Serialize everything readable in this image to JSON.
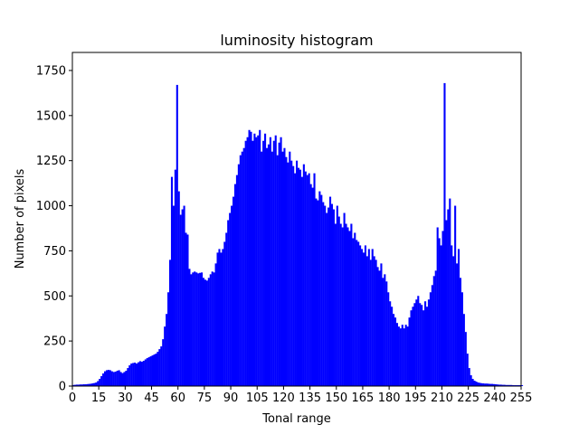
{
  "chart_data": {
    "type": "bar",
    "title": "luminosity histogram",
    "xlabel": "Tonal range",
    "ylabel": "Number of pixels",
    "xlim": [
      0,
      255
    ],
    "ylim": [
      0,
      1850
    ],
    "grid": false,
    "bar_color": "#0000ff",
    "x_ticks": [
      0,
      15,
      30,
      45,
      60,
      75,
      90,
      105,
      120,
      135,
      150,
      165,
      180,
      195,
      210,
      225,
      240,
      255
    ],
    "y_ticks": [
      0,
      250,
      500,
      750,
      1000,
      1250,
      1500,
      1750
    ],
    "series": [
      {
        "values": [
          6,
          7,
          8,
          8,
          9,
          9,
          10,
          10,
          11,
          12,
          13,
          15,
          17,
          20,
          28,
          40,
          55,
          70,
          82,
          88,
          90,
          88,
          82,
          78,
          80,
          85,
          88,
          78,
          72,
          78,
          85,
          100,
          115,
          125,
          128,
          130,
          125,
          132,
          138,
          135,
          140,
          148,
          155,
          160,
          165,
          170,
          175,
          180,
          190,
          205,
          220,
          260,
          330,
          400,
          520,
          700,
          1160,
          1000,
          1200,
          1670,
          1080,
          950,
          980,
          1000,
          850,
          840,
          650,
          620,
          630,
          635,
          630,
          625,
          628,
          630,
          600,
          590,
          585,
          600,
          620,
          635,
          630,
          680,
          740,
          760,
          740,
          760,
          800,
          850,
          920,
          960,
          1000,
          1050,
          1120,
          1170,
          1230,
          1280,
          1300,
          1320,
          1360,
          1380,
          1420,
          1410,
          1360,
          1400,
          1380,
          1390,
          1420,
          1300,
          1360,
          1400,
          1320,
          1340,
          1380,
          1300,
          1360,
          1390,
          1280,
          1350,
          1380,
          1300,
          1320,
          1270,
          1240,
          1300,
          1250,
          1220,
          1180,
          1250,
          1210,
          1200,
          1160,
          1230,
          1190,
          1170,
          1180,
          1120,
          1100,
          1180,
          1040,
          1030,
          1080,
          1060,
          1020,
          1000,
          960,
          990,
          1050,
          1010,
          980,
          900,
          1000,
          940,
          900,
          880,
          960,
          900,
          880,
          860,
          900,
          820,
          850,
          810,
          800,
          780,
          760,
          740,
          780,
          720,
          760,
          700,
          760,
          720,
          700,
          660,
          640,
          680,
          600,
          620,
          580,
          520,
          470,
          440,
          400,
          380,
          350,
          330,
          320,
          340,
          320,
          340,
          330,
          380,
          420,
          440,
          460,
          480,
          500,
          460,
          450,
          420,
          470,
          440,
          480,
          520,
          560,
          610,
          640,
          880,
          820,
          780,
          860,
          1680,
          920,
          980,
          1040,
          780,
          720,
          1000,
          680,
          760,
          600,
          520,
          400,
          300,
          180,
          100,
          60,
          40,
          30,
          25,
          20,
          18,
          16,
          15,
          14,
          14,
          13,
          12,
          12,
          11,
          10,
          9,
          8,
          8,
          7,
          7,
          6,
          6,
          6,
          6,
          5,
          5,
          5,
          5,
          5,
          5
        ]
      }
    ]
  }
}
